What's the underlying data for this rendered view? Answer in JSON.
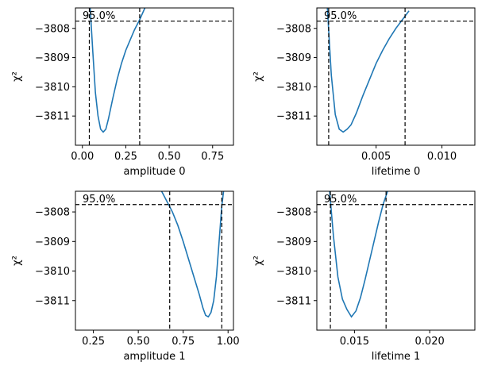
{
  "chart_data": [
    {
      "type": "line",
      "xlabel": "amplitude 0",
      "ylabel": "χ²",
      "xlim": [
        -0.04,
        0.87
      ],
      "ylim": [
        -3812.0,
        -3807.3
      ],
      "xticks": [
        0.0,
        0.25,
        0.5,
        0.75
      ],
      "xtick_labels": [
        "0.00",
        "0.25",
        "0.50",
        "0.75"
      ],
      "yticks": [
        -3811,
        -3810,
        -3809,
        -3808
      ],
      "ytick_labels": [
        "−3811",
        "−3810",
        "−3809",
        "−3808"
      ],
      "confidence_label": "95.0%",
      "threshold": -3807.75,
      "bounds": [
        0.04,
        0.33
      ],
      "x": [
        0.045,
        0.06,
        0.075,
        0.09,
        0.105,
        0.12,
        0.135,
        0.15,
        0.175,
        0.2,
        0.225,
        0.25,
        0.275,
        0.3,
        0.33,
        0.36
      ],
      "y": [
        -3807.3,
        -3808.8,
        -3810.2,
        -3811.0,
        -3811.45,
        -3811.55,
        -3811.45,
        -3811.1,
        -3810.4,
        -3809.75,
        -3809.2,
        -3808.75,
        -3808.4,
        -3808.05,
        -3807.7,
        -3807.3
      ]
    },
    {
      "type": "line",
      "xlabel": "lifetime 0",
      "ylabel": "χ²",
      "xlim": [
        0.0005,
        0.0125
      ],
      "ylim": [
        -3812.0,
        -3807.3
      ],
      "xticks": [
        0.005,
        0.01
      ],
      "xtick_labels": [
        "0.005",
        "0.010"
      ],
      "yticks": [
        -3811,
        -3810,
        -3809,
        -3808
      ],
      "ytick_labels": [
        "−3811",
        "−3810",
        "−3809",
        "−3808"
      ],
      "confidence_label": "95.0%",
      "threshold": -3807.75,
      "bounds": [
        0.0014,
        0.0072
      ],
      "x": [
        0.0013,
        0.0016,
        0.0019,
        0.0022,
        0.0025,
        0.0028,
        0.0031,
        0.0035,
        0.004,
        0.0045,
        0.005,
        0.0055,
        0.006,
        0.0065,
        0.007,
        0.0075
      ],
      "y": [
        -3807.3,
        -3809.6,
        -3810.95,
        -3811.45,
        -3811.55,
        -3811.45,
        -3811.3,
        -3810.9,
        -3810.3,
        -3809.75,
        -3809.2,
        -3808.75,
        -3808.35,
        -3808.0,
        -3807.7,
        -3807.4
      ]
    },
    {
      "type": "line",
      "xlabel": "amplitude 1",
      "ylabel": "χ²",
      "xlim": [
        0.15,
        1.03
      ],
      "ylim": [
        -3812.0,
        -3807.3
      ],
      "xticks": [
        0.25,
        0.5,
        0.75,
        1.0
      ],
      "xtick_labels": [
        "0.25",
        "0.50",
        "0.75",
        "1.00"
      ],
      "yticks": [
        -3811,
        -3810,
        -3809,
        -3808
      ],
      "ytick_labels": [
        "−3811",
        "−3810",
        "−3809",
        "−3808"
      ],
      "confidence_label": "95.0%",
      "threshold": -3807.75,
      "bounds": [
        0.675,
        0.965
      ],
      "x": [
        0.63,
        0.66,
        0.69,
        0.72,
        0.75,
        0.78,
        0.81,
        0.84,
        0.86,
        0.875,
        0.89,
        0.905,
        0.92,
        0.935,
        0.95,
        0.965,
        0.975
      ],
      "y": [
        -3807.3,
        -3807.65,
        -3808.0,
        -3808.45,
        -3809.0,
        -3809.6,
        -3810.2,
        -3810.8,
        -3811.25,
        -3811.5,
        -3811.55,
        -3811.4,
        -3811.0,
        -3810.2,
        -3809.0,
        -3807.8,
        -3807.3
      ]
    },
    {
      "type": "line",
      "xlabel": "lifetime 1",
      "ylabel": "χ²",
      "xlim": [
        0.0125,
        0.023
      ],
      "ylim": [
        -3812.0,
        -3807.3
      ],
      "xticks": [
        0.015,
        0.02
      ],
      "xtick_labels": [
        "0.015",
        "0.020"
      ],
      "yticks": [
        -3811,
        -3810,
        -3809,
        -3808
      ],
      "ytick_labels": [
        "−3811",
        "−3810",
        "−3809",
        "−3808"
      ],
      "confidence_label": "95.0%",
      "threshold": -3807.75,
      "bounds": [
        0.0134,
        0.0171
      ],
      "x": [
        0.01335,
        0.0136,
        0.0139,
        0.0142,
        0.0145,
        0.0148,
        0.0151,
        0.0154,
        0.0157,
        0.016,
        0.0163,
        0.0166,
        0.0169,
        0.0172
      ],
      "y": [
        -3807.3,
        -3808.8,
        -3810.2,
        -3810.95,
        -3811.3,
        -3811.55,
        -3811.35,
        -3810.9,
        -3810.3,
        -3809.65,
        -3809.0,
        -3808.35,
        -3807.75,
        -3807.3
      ]
    }
  ]
}
